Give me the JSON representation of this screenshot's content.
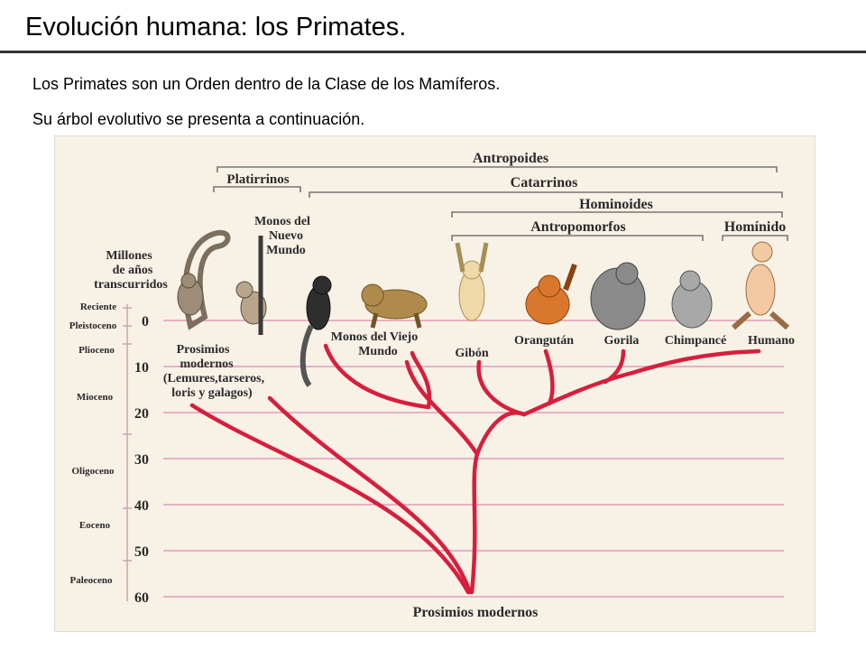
{
  "title": "Evolución humana: los Primates.",
  "intro": {
    "line1": "Los Primates son un Orden dentro de la Clase de los Mamíferos.",
    "line2": "Su árbol evolutivo se presenta a continuación."
  },
  "diagram": {
    "axis_title": [
      "Millones",
      "de años",
      "transcurridos"
    ],
    "ticks": [
      "0",
      "10",
      "20",
      "30",
      "40",
      "50",
      "60"
    ],
    "epochs": [
      "Reciente",
      "Pleistoceno",
      "Plioceno",
      "Mioceno",
      "Oligoceno",
      "Eoceno",
      "Paleoceno"
    ],
    "groups": {
      "antropoides": "Antropoides",
      "platirrinos": "Platirrinos",
      "catarrinos": "Catarrinos",
      "hominoides": "Hominoides",
      "antropomorfos": "Antropomorfos",
      "hominido": "Homínido"
    },
    "taxa": {
      "prosimios_top": [
        "Prosimios",
        "modernos",
        "(Lemures,tarseros,",
        "loris y galagos)"
      ],
      "nuevo_mundo": [
        "Monos del",
        "Nuevo",
        "Mundo"
      ],
      "viejo_mundo": [
        "Monos del Viejo",
        "Mundo"
      ],
      "gibon": "Gibón",
      "orangutan": "Orangután",
      "gorila": "Gorila",
      "chimpance": "Chimpancé",
      "humano": "Humano"
    },
    "root": "Prosimios modernos",
    "colors": {
      "branch": "#d81e3c",
      "gridline": "#e59ab6",
      "background": "#f7f1e6"
    }
  }
}
